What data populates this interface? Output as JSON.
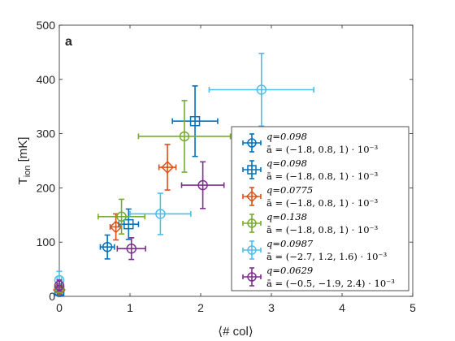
{
  "chart_data": {
    "type": "scatter",
    "panel_label": "a",
    "xlabel": "⟨# col⟩",
    "ylabel": "T",
    "ylabel_sub": "ion",
    "ylabel_unit": " [mK]",
    "xlim": [
      0,
      5
    ],
    "ylim": [
      0,
      500
    ],
    "xticks": [
      0,
      1,
      2,
      3,
      4,
      5
    ],
    "yticks": [
      0,
      100,
      200,
      300,
      400,
      500
    ],
    "grid": false,
    "legend_position": "lower-right",
    "series": [
      {
        "legend_line1": "q=0.098",
        "legend_line2": "ā = (−1.8, 0.8, 1) · 10⁻³",
        "color": "#0072BD",
        "marker": "circle",
        "points": [
          {
            "x": 0.0,
            "y": 8,
            "xerr": 0.03,
            "yerr": 6
          },
          {
            "x": 0.68,
            "y": 91,
            "xerr": 0.1,
            "yerr": 22
          }
        ]
      },
      {
        "legend_line1": "q=0.098",
        "legend_line2": "ā = (−1.8, 0.8, 1) · 10⁻³",
        "color": "#0072BD",
        "marker": "square",
        "points": [
          {
            "x": 0.0,
            "y": 10,
            "xerr": 0.03,
            "yerr": 6
          },
          {
            "x": 0.98,
            "y": 133,
            "xerr": 0.14,
            "yerr": 28
          },
          {
            "x": 1.92,
            "y": 323,
            "xerr": 0.32,
            "yerr": 65
          }
        ]
      },
      {
        "legend_line1": "q=0.0775",
        "legend_line2": "ā = (−1.8, 0.8, 1) · 10⁻³",
        "color": "#D95319",
        "marker": "diamond",
        "points": [
          {
            "x": 0.0,
            "y": 12,
            "xerr": 0.03,
            "yerr": 6
          },
          {
            "x": 0.8,
            "y": 128,
            "xerr": 0.08,
            "yerr": 24
          },
          {
            "x": 1.53,
            "y": 238,
            "xerr": 0.12,
            "yerr": 42
          }
        ]
      },
      {
        "legend_line1": "q=0.138",
        "legend_line2": "ā = (−1.8, 0.8, 1) · 10⁻³",
        "color": "#77AC30",
        "marker": "circle",
        "points": [
          {
            "x": 0.0,
            "y": 15,
            "xerr": 0.03,
            "yerr": 8
          },
          {
            "x": 0.88,
            "y": 147,
            "xerr": 0.33,
            "yerr": 32
          },
          {
            "x": 1.77,
            "y": 295,
            "xerr": 0.65,
            "yerr": 66
          }
        ]
      },
      {
        "legend_line1": "q=0.0987",
        "legend_line2": "ā = (−2.7, 1.2, 1.6) · 10⁻³",
        "color": "#4DBEEE",
        "marker": "circle",
        "points": [
          {
            "x": 0.0,
            "y": 30,
            "xerr": 0.03,
            "yerr": 16
          },
          {
            "x": 1.43,
            "y": 152,
            "xerr": 0.43,
            "yerr": 38
          },
          {
            "x": 2.86,
            "y": 381,
            "xerr": 0.74,
            "yerr": 67
          }
        ]
      },
      {
        "legend_line1": "q=0.0629",
        "legend_line2": "ā = (−0.5, −1.9, 2.4) · 10⁻³",
        "color": "#7E2F8E",
        "marker": "circle",
        "points": [
          {
            "x": 0.0,
            "y": 20,
            "xerr": 0.03,
            "yerr": 10
          },
          {
            "x": 1.02,
            "y": 88,
            "xerr": 0.2,
            "yerr": 20
          },
          {
            "x": 2.03,
            "y": 205,
            "xerr": 0.3,
            "yerr": 43
          }
        ]
      }
    ]
  }
}
